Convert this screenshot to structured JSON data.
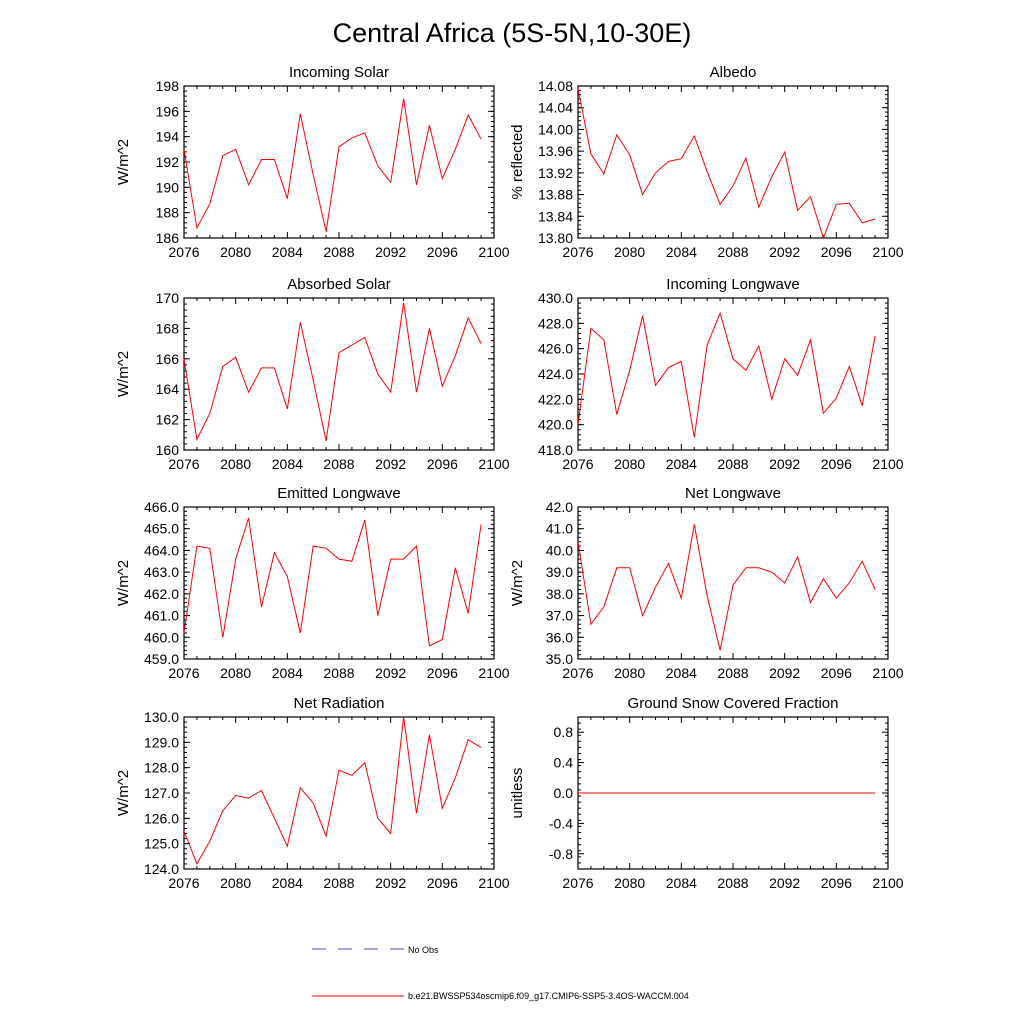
{
  "title": "Central Africa (5S-5N,10-30E)",
  "legend": {
    "obs_label": "No Obs",
    "model_label": "b.e21.BWSSP534oscmip6.f09_g17.CMIP6-SSP5-3.4OS-WACCM.004",
    "obs_color": "#4a4ad8",
    "model_color": "#ff0000"
  },
  "chart_data": [
    {
      "type": "line",
      "title": "Incoming Solar",
      "ylabel": "W/m^2",
      "xlim": [
        2076,
        2100
      ],
      "ylim": [
        186,
        198
      ],
      "xticks": [
        "2076",
        "2080",
        "2084",
        "2088",
        "2092",
        "2096",
        "2100"
      ],
      "yticks": [
        "186",
        "188",
        "190",
        "192",
        "194",
        "196",
        "198"
      ],
      "x": [
        2076,
        2077,
        2078,
        2079,
        2080,
        2081,
        2082,
        2083,
        2084,
        2085,
        2086,
        2087,
        2088,
        2089,
        2090,
        2091,
        2092,
        2093,
        2094,
        2095,
        2096,
        2097,
        2098,
        2099
      ],
      "series": [
        {
          "name": "b.e21.BWSSP534oscmip6.f09_g17.CMIP6-SSP5-3.4OS-WACCM.004",
          "values": [
            193.0,
            186.8,
            188.7,
            192.5,
            193.0,
            190.2,
            192.2,
            192.2,
            189.1,
            195.8,
            191.0,
            186.5,
            193.2,
            193.9,
            194.3,
            191.7,
            190.4,
            197.0,
            190.2,
            194.9,
            190.7,
            193.0,
            195.7,
            193.8
          ]
        }
      ]
    },
    {
      "type": "line",
      "title": "Albedo",
      "ylabel": "% reflected",
      "xlim": [
        2076,
        2100
      ],
      "ylim": [
        13.8,
        14.08
      ],
      "xticks": [
        "2076",
        "2080",
        "2084",
        "2088",
        "2092",
        "2096",
        "2100"
      ],
      "yticks": [
        "13.80",
        "13.84",
        "13.88",
        "13.92",
        "13.96",
        "14.00",
        "14.04",
        "14.08"
      ],
      "x": [
        2076,
        2077,
        2078,
        2079,
        2080,
        2081,
        2082,
        2083,
        2084,
        2085,
        2086,
        2087,
        2088,
        2089,
        2090,
        2091,
        2092,
        2093,
        2094,
        2095,
        2096,
        2097,
        2098,
        2099
      ],
      "series": [
        {
          "name": "b.e21.BWSSP534oscmip6.f09_g17.CMIP6-SSP5-3.4OS-WACCM.004",
          "values": [
            14.075,
            13.955,
            13.918,
            13.99,
            13.953,
            13.88,
            13.92,
            13.941,
            13.946,
            13.988,
            13.922,
            13.862,
            13.896,
            13.947,
            13.857,
            13.913,
            13.958,
            13.851,
            13.876,
            13.8,
            13.862,
            13.864,
            13.828,
            13.835
          ]
        }
      ]
    },
    {
      "type": "line",
      "title": "Absorbed Solar",
      "ylabel": "W/m^2",
      "xlim": [
        2076,
        2100
      ],
      "ylim": [
        160,
        170
      ],
      "xticks": [
        "2076",
        "2080",
        "2084",
        "2088",
        "2092",
        "2096",
        "2100"
      ],
      "yticks": [
        "160",
        "162",
        "164",
        "166",
        "168",
        "170"
      ],
      "x": [
        2076,
        2077,
        2078,
        2079,
        2080,
        2081,
        2082,
        2083,
        2084,
        2085,
        2086,
        2087,
        2088,
        2089,
        2090,
        2091,
        2092,
        2093,
        2094,
        2095,
        2096,
        2097,
        2098,
        2099
      ],
      "series": [
        {
          "name": "b.e21.BWSSP534oscmip6.f09_g17.CMIP6-SSP5-3.4OS-WACCM.004",
          "values": [
            166.0,
            160.7,
            162.4,
            165.5,
            166.1,
            163.8,
            165.4,
            165.4,
            162.7,
            168.4,
            164.6,
            160.6,
            166.4,
            166.9,
            167.4,
            165.0,
            163.8,
            169.7,
            163.8,
            168.0,
            164.2,
            166.2,
            168.7,
            167.0
          ]
        }
      ]
    },
    {
      "type": "line",
      "title": "Incoming Longwave",
      "ylabel": "",
      "xlim": [
        2076,
        2100
      ],
      "ylim": [
        418,
        430
      ],
      "xticks": [
        "2076",
        "2080",
        "2084",
        "2088",
        "2092",
        "2096",
        "2100"
      ],
      "yticks": [
        "418.0",
        "420.0",
        "422.0",
        "424.0",
        "426.0",
        "428.0",
        "430.0"
      ],
      "x": [
        2076,
        2077,
        2078,
        2079,
        2080,
        2081,
        2082,
        2083,
        2084,
        2085,
        2086,
        2087,
        2088,
        2089,
        2090,
        2091,
        2092,
        2093,
        2094,
        2095,
        2096,
        2097,
        2098,
        2099
      ],
      "series": [
        {
          "name": "b.e21.BWSSP534oscmip6.f09_g17.CMIP6-SSP5-3.4OS-WACCM.004",
          "values": [
            420.0,
            427.6,
            426.7,
            420.8,
            424.3,
            428.6,
            423.1,
            424.5,
            425.0,
            419.0,
            426.3,
            428.8,
            425.2,
            424.3,
            426.2,
            422.0,
            425.2,
            423.9,
            426.7,
            420.9,
            422.1,
            424.6,
            421.5,
            427.0
          ]
        }
      ]
    },
    {
      "type": "line",
      "title": "Emitted Longwave",
      "ylabel": "W/m^2",
      "xlim": [
        2076,
        2100
      ],
      "ylim": [
        459,
        466
      ],
      "xticks": [
        "2076",
        "2080",
        "2084",
        "2088",
        "2092",
        "2096",
        "2100"
      ],
      "yticks": [
        "459.0",
        "460.0",
        "461.0",
        "462.0",
        "463.0",
        "464.0",
        "465.0",
        "466.0"
      ],
      "x": [
        2076,
        2077,
        2078,
        2079,
        2080,
        2081,
        2082,
        2083,
        2084,
        2085,
        2086,
        2087,
        2088,
        2089,
        2090,
        2091,
        2092,
        2093,
        2094,
        2095,
        2096,
        2097,
        2098,
        2099
      ],
      "series": [
        {
          "name": "b.e21.BWSSP534oscmip6.f09_g17.CMIP6-SSP5-3.4OS-WACCM.004",
          "values": [
            460.2,
            464.2,
            464.1,
            460.0,
            463.6,
            465.5,
            461.4,
            463.9,
            462.8,
            460.2,
            464.2,
            464.1,
            463.6,
            463.5,
            465.4,
            461.0,
            463.6,
            463.6,
            464.2,
            459.6,
            459.9,
            463.2,
            461.1,
            465.2
          ]
        }
      ]
    },
    {
      "type": "line",
      "title": "Net Longwave",
      "ylabel": "W/m^2",
      "xlim": [
        2076,
        2100
      ],
      "ylim": [
        35,
        42
      ],
      "xticks": [
        "2076",
        "2080",
        "2084",
        "2088",
        "2092",
        "2096",
        "2100"
      ],
      "yticks": [
        "35.0",
        "36.0",
        "37.0",
        "38.0",
        "39.0",
        "40.0",
        "41.0",
        "42.0"
      ],
      "x": [
        2076,
        2077,
        2078,
        2079,
        2080,
        2081,
        2082,
        2083,
        2084,
        2085,
        2086,
        2087,
        2088,
        2089,
        2090,
        2091,
        2092,
        2093,
        2094,
        2095,
        2096,
        2097,
        2098,
        2099
      ],
      "series": [
        {
          "name": "b.e21.BWSSP534oscmip6.f09_g17.CMIP6-SSP5-3.4OS-WACCM.004",
          "values": [
            40.4,
            36.6,
            37.4,
            39.2,
            39.2,
            37.0,
            38.3,
            39.4,
            37.8,
            41.2,
            37.9,
            35.4,
            38.4,
            39.2,
            39.2,
            39.0,
            38.5,
            39.7,
            37.6,
            38.7,
            37.8,
            38.5,
            39.5,
            38.2
          ]
        }
      ]
    },
    {
      "type": "line",
      "title": "Net Radiation",
      "ylabel": "W/m^2",
      "xlim": [
        2076,
        2100
      ],
      "ylim": [
        124,
        130
      ],
      "xticks": [
        "2076",
        "2080",
        "2084",
        "2088",
        "2092",
        "2096",
        "2100"
      ],
      "yticks": [
        "124.0",
        "125.0",
        "126.0",
        "127.0",
        "128.0",
        "129.0",
        "130.0"
      ],
      "x": [
        2076,
        2077,
        2078,
        2079,
        2080,
        2081,
        2082,
        2083,
        2084,
        2085,
        2086,
        2087,
        2088,
        2089,
        2090,
        2091,
        2092,
        2093,
        2094,
        2095,
        2096,
        2097,
        2098,
        2099
      ],
      "series": [
        {
          "name": "b.e21.BWSSP534oscmip6.f09_g17.CMIP6-SSP5-3.4OS-WACCM.004",
          "values": [
            125.5,
            124.2,
            125.1,
            126.3,
            126.9,
            126.8,
            127.1,
            126.0,
            124.9,
            127.2,
            126.6,
            125.3,
            127.9,
            127.7,
            128.2,
            126.0,
            125.4,
            130.0,
            126.2,
            129.3,
            126.4,
            127.6,
            129.1,
            128.8
          ]
        }
      ]
    },
    {
      "type": "line",
      "title": "Ground Snow Covered Fraction",
      "ylabel": "unitless",
      "xlim": [
        2076,
        2100
      ],
      "ylim": [
        -1.0,
        1.0
      ],
      "xticks": [
        "2076",
        "2080",
        "2084",
        "2088",
        "2092",
        "2096",
        "2100"
      ],
      "yticks": [
        "-0.8",
        "-0.4",
        "0.0",
        "0.4",
        "0.8"
      ],
      "ytick_values": [
        -0.8,
        -0.4,
        0.0,
        0.4,
        0.8
      ],
      "x": [
        2076,
        2077,
        2078,
        2079,
        2080,
        2081,
        2082,
        2083,
        2084,
        2085,
        2086,
        2087,
        2088,
        2089,
        2090,
        2091,
        2092,
        2093,
        2094,
        2095,
        2096,
        2097,
        2098,
        2099
      ],
      "series": [
        {
          "name": "b.e21.BWSSP534oscmip6.f09_g17.CMIP6-SSP5-3.4OS-WACCM.004",
          "values": [
            0,
            0,
            0,
            0,
            0,
            0,
            0,
            0,
            0,
            0,
            0,
            0,
            0,
            0,
            0,
            0,
            0,
            0,
            0,
            0,
            0,
            0,
            0,
            0
          ]
        }
      ]
    }
  ]
}
